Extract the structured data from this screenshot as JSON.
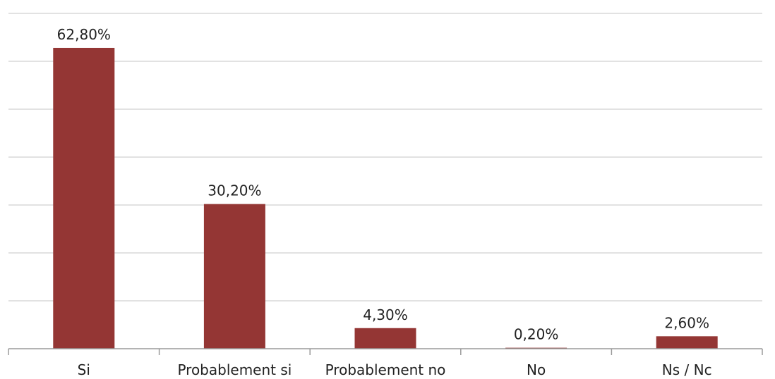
{
  "colors": {
    "bar": "#943634",
    "grid": "#d9d9d9",
    "axis": "#9a9a9a",
    "text": "#222222"
  },
  "chart_data": {
    "type": "bar",
    "categories": [
      "Si",
      "Probablement si",
      "Probablement no",
      "No",
      "Ns / Nc"
    ],
    "values": [
      62.8,
      30.2,
      4.3,
      0.2,
      2.6
    ],
    "data_labels": [
      "62,80%",
      "30,20%",
      "4,30%",
      "0,20%",
      "2,60%"
    ],
    "ylim": [
      0,
      70
    ],
    "y_gridline_step": 10,
    "grid": true,
    "legend": "none",
    "xlabel": "",
    "ylabel": ""
  }
}
